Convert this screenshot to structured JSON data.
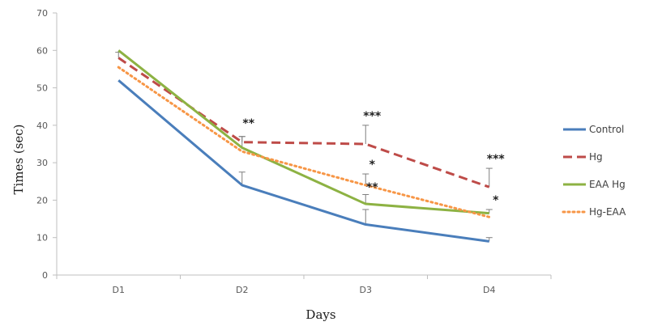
{
  "chart_data": {
    "type": "line",
    "categories": [
      "D1",
      "D2",
      "D3",
      "D4"
    ],
    "xlabel": "Days",
    "ylabel": "Times (sec)",
    "ylim": [
      0,
      70
    ],
    "yticks": [
      0,
      10,
      20,
      30,
      40,
      50,
      60,
      70
    ],
    "grid": false,
    "legend_position": "right",
    "series": [
      {
        "name": "Control",
        "values": [
          52,
          24,
          13.5,
          9
        ],
        "errors": [
          null,
          3.5,
          4,
          1
        ],
        "color": "#4a7ebb",
        "style": "solid"
      },
      {
        "name": "Hg",
        "values": [
          58,
          35.5,
          35,
          23.5
        ],
        "errors": [
          1.5,
          1.5,
          5,
          5
        ],
        "color": "#be4b48",
        "style": "dashed"
      },
      {
        "name": "EAA Hg",
        "values": [
          60,
          34,
          19,
          16.5
        ],
        "errors": [
          null,
          3,
          2.5,
          1
        ],
        "color": "#8db243",
        "style": "solid"
      },
      {
        "name": "Hg-EAA",
        "values": [
          55.5,
          33,
          24,
          15.5
        ],
        "errors": [
          null,
          null,
          3,
          null
        ],
        "color": "#f79646",
        "style": "dotted"
      }
    ],
    "annotations": [
      {
        "text": "**",
        "x": "D2",
        "y": 39.5
      },
      {
        "text": "***",
        "x": "D3",
        "y": 41.5
      },
      {
        "text": "*",
        "x": "D3",
        "y": 28.5
      },
      {
        "text": "**",
        "x": "D3",
        "y": 22.5
      },
      {
        "text": "***",
        "x": "D4",
        "y": 30
      },
      {
        "text": "*",
        "x": "D4",
        "y": 19
      }
    ]
  }
}
